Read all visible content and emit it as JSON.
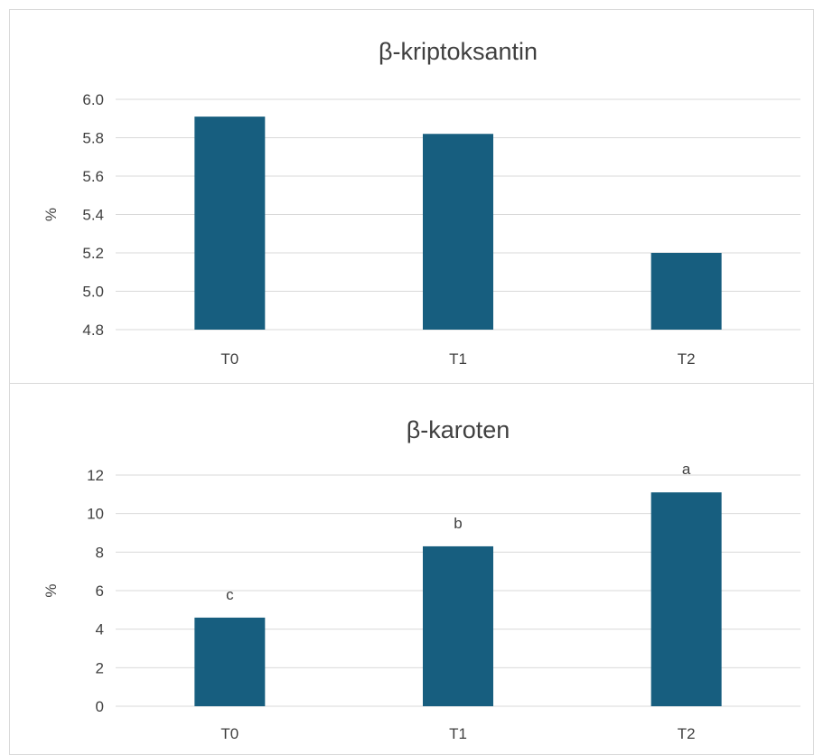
{
  "chart_data": [
    {
      "type": "bar",
      "title": "β-kriptoksantin",
      "ylabel": "%",
      "xlabel": "",
      "categories": [
        "T0",
        "T1",
        "T2"
      ],
      "values": [
        5.91,
        5.82,
        5.2
      ],
      "ylim": [
        4.8,
        6.0
      ],
      "yticks": [
        "4.8",
        "5.0",
        "5.2",
        "5.4",
        "5.6",
        "5.8",
        "6.0"
      ],
      "data_labels": [],
      "grid": true,
      "bar_color": "#175e7f"
    },
    {
      "type": "bar",
      "title": "β-karoten",
      "ylabel": "%",
      "xlabel": "",
      "categories": [
        "T0",
        "T1",
        "T2"
      ],
      "values": [
        4.6,
        8.3,
        11.1
      ],
      "ylim": [
        0,
        12
      ],
      "yticks": [
        "0",
        "2",
        "4",
        "6",
        "8",
        "10",
        "12"
      ],
      "data_labels": [
        "c",
        "b",
        "a"
      ],
      "grid": true,
      "bar_color": "#175e7f"
    }
  ]
}
